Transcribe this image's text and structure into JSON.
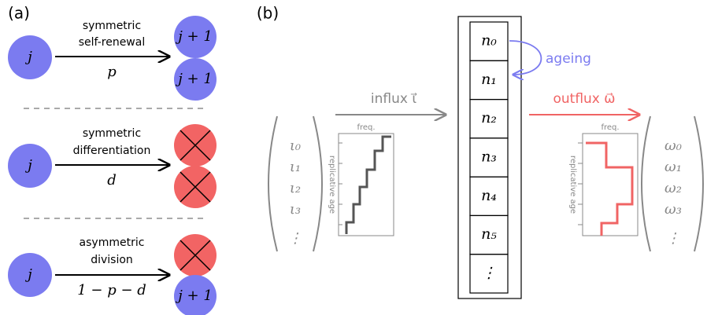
{
  "panel_a": {
    "label": "(a)",
    "rows": [
      {
        "source": "j",
        "process": [
          "symmetric",
          "self-renewal"
        ],
        "rate": "p",
        "products": [
          "j + 1",
          "j + 1"
        ]
      },
      {
        "source": "j",
        "process": [
          "symmetric",
          "differentiation"
        ],
        "rate": "d"
      },
      {
        "source": "j",
        "process": [
          "asymmetric",
          "division"
        ],
        "rate": "1 − p − d",
        "products": [
          "j + 1"
        ]
      }
    ]
  },
  "panel_b": {
    "label": "(b)",
    "cells": [
      "n₀",
      "n₁",
      "n₂",
      "n₃",
      "n₄",
      "n₅",
      "⋮"
    ],
    "ageing": "ageing",
    "influx": {
      "label": "influx ι⃗",
      "entries": [
        "ι₀",
        "ι₁",
        "ι₂",
        "ι₃",
        "⋮"
      ],
      "hist_x": "freq.",
      "hist_y": "replicative age"
    },
    "outflux": {
      "label": "outflux ω⃗",
      "entries": [
        "ω₀",
        "ω₁",
        "ω₂",
        "ω₃",
        "⋮"
      ],
      "hist_x": "freq.",
      "hist_y": "replicative age"
    }
  }
}
